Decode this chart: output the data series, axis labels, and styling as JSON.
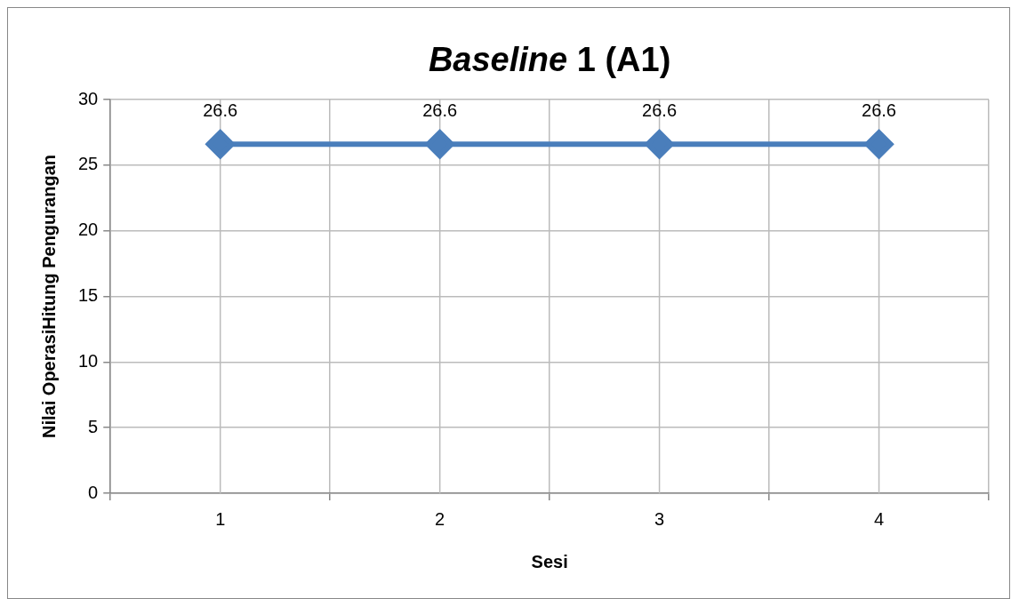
{
  "chart_data": {
    "type": "line",
    "title": "Baseline 1 (A1)",
    "xlabel": "Sesi",
    "ylabel": "Nilai OperasiHitung Pengurangan",
    "categories": [
      "1",
      "2",
      "3",
      "4"
    ],
    "series": [
      {
        "color": "#4a7ebb",
        "values": [
          26.6,
          26.6,
          26.6,
          26.6
        ]
      }
    ],
    "ylim": [
      0,
      30
    ],
    "yticks": [
      0,
      5,
      10,
      15,
      20,
      25,
      30
    ],
    "grid": true,
    "legend": false,
    "marker": "diamond",
    "line_style": "solid",
    "data_labels": true
  }
}
